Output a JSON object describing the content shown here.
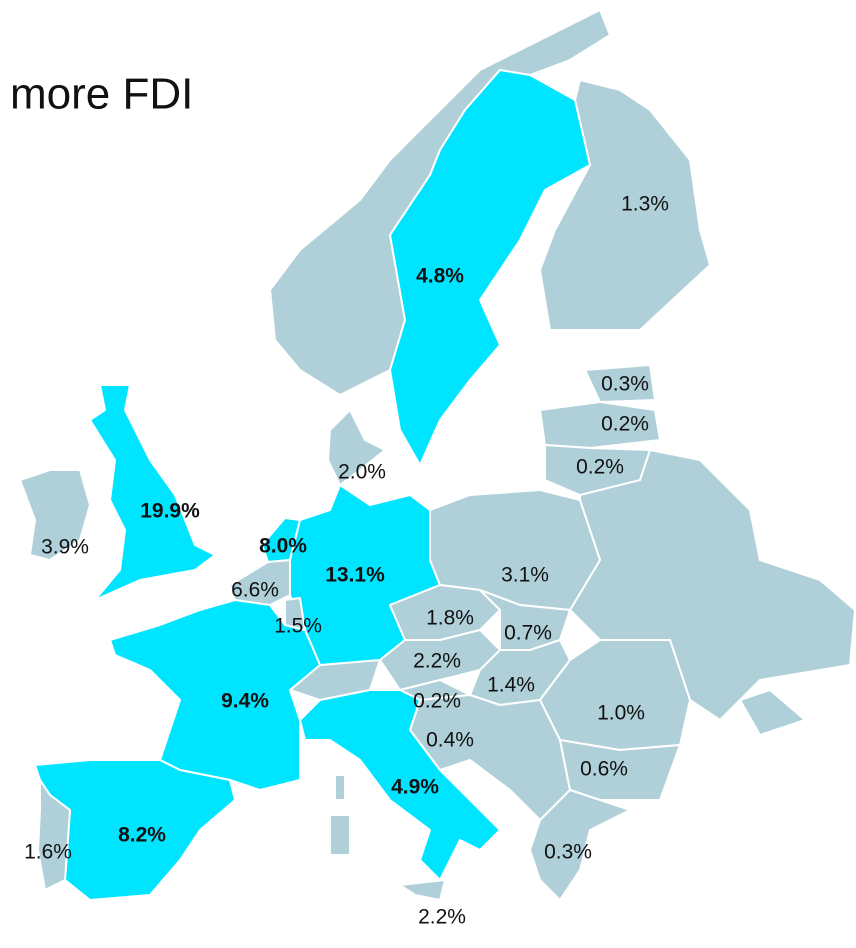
{
  "title": "more FDI",
  "highlight_color": "#00e5ff",
  "base_color": "#afcfd9",
  "regions": [
    {
      "label": "1.3%",
      "highlighted": false
    },
    {
      "label": "4.8%",
      "highlighted": true
    },
    {
      "label": "0.3%",
      "highlighted": false
    },
    {
      "label": "0.2%",
      "highlighted": false
    },
    {
      "label": "0.2%",
      "highlighted": false
    },
    {
      "label": "2.0%",
      "highlighted": false
    },
    {
      "label": "19.9%",
      "highlighted": true
    },
    {
      "label": "3.9%",
      "highlighted": false
    },
    {
      "label": "8.0%",
      "highlighted": true
    },
    {
      "label": "13.1%",
      "highlighted": true
    },
    {
      "label": "3.1%",
      "highlighted": false
    },
    {
      "label": "6.6%",
      "highlighted": false
    },
    {
      "label": "1.5%",
      "highlighted": false
    },
    {
      "label": "1.8%",
      "highlighted": false
    },
    {
      "label": "0.7%",
      "highlighted": false
    },
    {
      "label": "2.2%",
      "highlighted": false
    },
    {
      "label": "1.4%",
      "highlighted": false
    },
    {
      "label": "0.2%",
      "highlighted": false
    },
    {
      "label": "9.4%",
      "highlighted": true
    },
    {
      "label": "1.0%",
      "highlighted": false
    },
    {
      "label": "0.4%",
      "highlighted": false
    },
    {
      "label": "0.6%",
      "highlighted": false
    },
    {
      "label": "4.9%",
      "highlighted": true
    },
    {
      "label": "8.2%",
      "highlighted": true
    },
    {
      "label": "1.6%",
      "highlighted": false
    },
    {
      "label": "0.3%",
      "highlighted": false
    },
    {
      "label": "2.2%",
      "highlighted": false
    }
  ]
}
